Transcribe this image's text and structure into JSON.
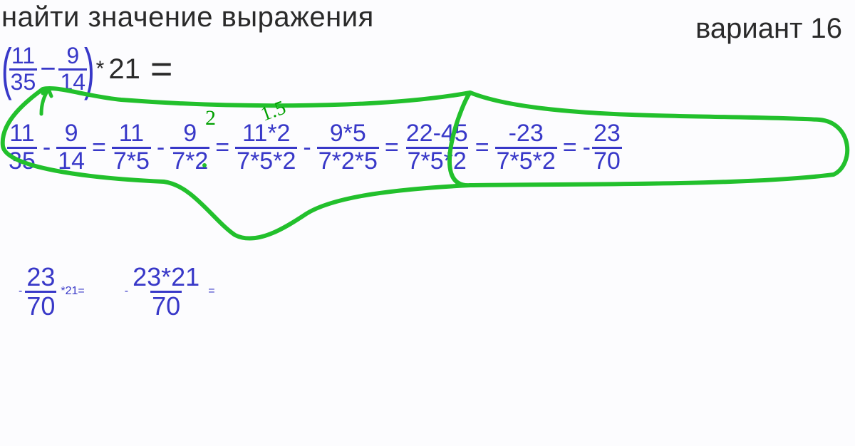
{
  "title": "найти значение выражения",
  "variant": "вариант 16",
  "colors": {
    "text": "#2a2a2a",
    "math": "#3838c8",
    "annotation": "#22c02c",
    "annotation_alt": "#00a000",
    "background": "#fcfcfe"
  },
  "font_sizes": {
    "title": 40,
    "variant": 40,
    "math_main": 34,
    "math_final": 36
  },
  "problem": {
    "frac1": {
      "num": "11",
      "den": "35"
    },
    "op1": "−",
    "frac2": {
      "num": "9",
      "den": "14"
    },
    "times": "*",
    "factor": "21",
    "eq": "="
  },
  "handnotes": {
    "exp1": "2",
    "exp2": "1.5"
  },
  "line1": {
    "steps": [
      {
        "f": {
          "num": "11",
          "den": "35"
        },
        "after_op": "-"
      },
      {
        "f": {
          "num": "9",
          "den": "14"
        },
        "after_op": "="
      },
      {
        "f": {
          "num": "11",
          "den": "7*5"
        },
        "after_op": "-"
      },
      {
        "f": {
          "num": "9",
          "den": "7*2"
        },
        "after_op": "="
      },
      {
        "f": {
          "num": "11*2",
          "den": "7*5*2"
        },
        "after_op": "-"
      },
      {
        "f": {
          "num": "9*5",
          "den": "7*2*5"
        },
        "after_op": "="
      },
      {
        "f": {
          "num": "22-45",
          "den": "7*5*2"
        },
        "after_op": "="
      },
      {
        "f": {
          "num": "-23",
          "den": "7*5*2"
        },
        "after_op": "="
      },
      {
        "lead": "-",
        "f": {
          "num": "23",
          "den": "70"
        }
      }
    ]
  },
  "line2": {
    "a": {
      "lead": "-",
      "f": {
        "num": "23",
        "den": "70"
      },
      "tail": "*21="
    },
    "b": {
      "lead": "-",
      "f": {
        "num": "23*21",
        "den": "70"
      },
      "tail": "="
    }
  }
}
